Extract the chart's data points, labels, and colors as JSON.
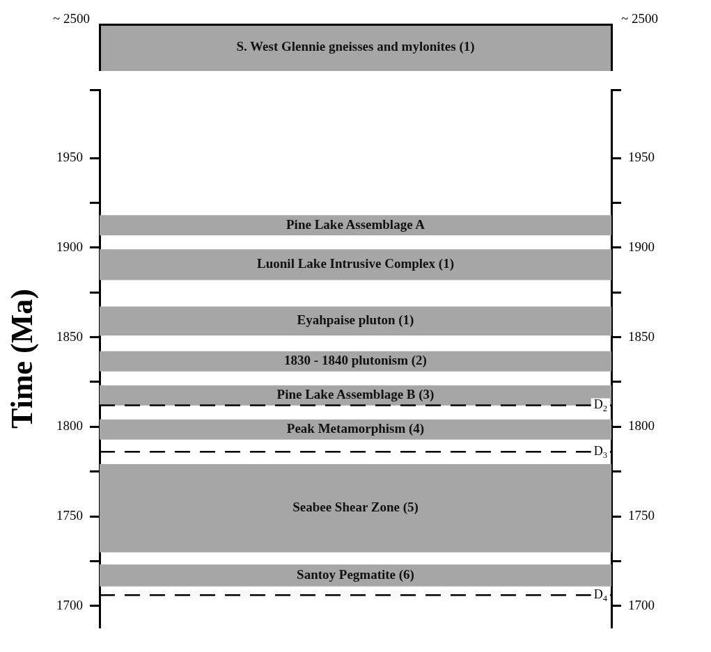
{
  "chart_data": [
    {
      "type": "other",
      "annotations": [
        "~ 2500",
        "~ 2500",
        "S. West Glennie gneisses and mylonites (1)"
      ]
    },
    {
      "type": "bar",
      "ylabel": "Time (Ma)",
      "categories": [
        null
      ],
      "ylim": [
        1688,
        1988
      ],
      "yticks": [
        {
          "value": 1700,
          "label": "1700"
        },
        {
          "value": 1725,
          "label": null
        },
        {
          "value": 1750,
          "label": "1750"
        },
        {
          "value": 1775,
          "label": null
        },
        {
          "value": 1800,
          "label": "1800"
        },
        {
          "value": 1825,
          "label": null
        },
        {
          "value": 1850,
          "label": "1850"
        },
        {
          "value": 1875,
          "label": null
        },
        {
          "value": 1900,
          "label": "1900"
        },
        {
          "value": 1925,
          "label": null
        },
        {
          "value": 1950,
          "label": "1950"
        },
        {
          "value": 1988,
          "label": null
        }
      ],
      "y2lim": [
        1688,
        1988
      ],
      "y2ticks": [
        {
          "value": 1700,
          "label": "1700"
        },
        {
          "value": 1725,
          "label": null
        },
        {
          "value": 1750,
          "label": "1750"
        },
        {
          "value": 1775,
          "label": null
        },
        {
          "value": 1800,
          "label": "1800"
        },
        {
          "value": 1825,
          "label": null
        },
        {
          "value": 1850,
          "label": "1850"
        },
        {
          "value": 1875,
          "label": null
        },
        {
          "value": 1900,
          "label": "1900"
        },
        {
          "value": 1925,
          "label": null
        },
        {
          "value": 1950,
          "label": "1950"
        },
        {
          "value": 1988,
          "label": null
        }
      ],
      "series": [
        {
          "name": "Pine Lake Assemblage A",
          "color": "#a6a6a6",
          "base": [
            1907
          ],
          "values": [
            11
          ]
        },
        {
          "name": "Luonil Lake Intrusive Complex (1)",
          "color": "#a6a6a6",
          "base": [
            1882
          ],
          "values": [
            17
          ]
        },
        {
          "name": "Eyahpaise pluton (1)",
          "color": "#a6a6a6",
          "base": [
            1851
          ],
          "values": [
            16
          ]
        },
        {
          "name": "1830 - 1840 plutonism (2)",
          "color": "#a6a6a6",
          "base": [
            1831
          ],
          "values": [
            11
          ]
        },
        {
          "name": "Pine Lake Assemblage B (3)",
          "color": "#a6a6a6",
          "base": [
            1812
          ],
          "values": [
            11
          ]
        },
        {
          "name": "Peak Metamorphism (4)",
          "color": "#a6a6a6",
          "base": [
            1793
          ],
          "values": [
            11
          ]
        },
        {
          "name": "Seabee Shear Zone (5)",
          "color": "#a6a6a6",
          "base": [
            1730
          ],
          "values": [
            49
          ]
        },
        {
          "name": "Santoy Pegmatite (6)",
          "color": "#a6a6a6",
          "base": [
            1711
          ],
          "values": [
            12
          ]
        }
      ],
      "ref_lines": [
        {
          "axis": "y",
          "value": 1812,
          "label": "D$_{2}$",
          "color": "#000000",
          "line_style": "dashed"
        },
        {
          "axis": "y",
          "value": 1786,
          "label": "D$_{3}$",
          "color": "#000000",
          "line_style": "dashed"
        },
        {
          "axis": "y",
          "value": 1706,
          "label": "D$_{4}$",
          "color": "#000000",
          "line_style": "dashed"
        }
      ]
    }
  ]
}
